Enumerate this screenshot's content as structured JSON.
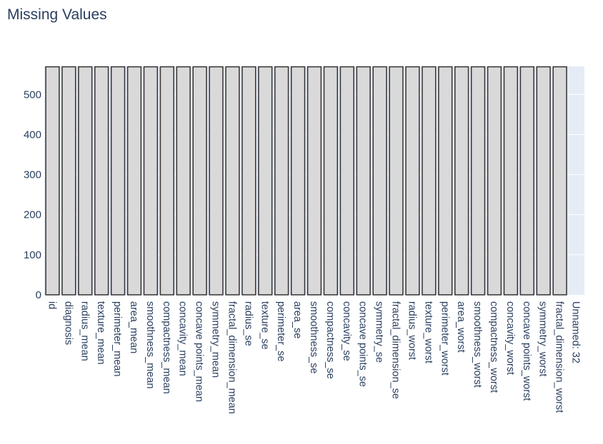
{
  "chart_data": {
    "type": "bar",
    "title": "Missing Values",
    "xlabel": "",
    "ylabel": "",
    "ylim": [
      0,
      570
    ],
    "yticks": [
      0,
      100,
      200,
      300,
      400,
      500
    ],
    "grid": true,
    "legend": "none",
    "colors": {
      "bar_fill": "#d9d9d9",
      "bar_stroke": "#333333",
      "plot_bg": "#e5ecf6",
      "grid": "#ffffff",
      "text": "#2a3f5f"
    },
    "categories": [
      "id",
      "diagnosis",
      "radius_mean",
      "texture_mean",
      "perimeter_mean",
      "area_mean",
      "smoothness_mean",
      "compactness_mean",
      "concavity_mean",
      "concave points_mean",
      "symmetry_mean",
      "fractal_dimension_mean",
      "radius_se",
      "texture_se",
      "perimeter_se",
      "area_se",
      "smoothness_se",
      "compactness_se",
      "concavity_se",
      "concave points_se",
      "symmetry_se",
      "fractal_dimension_se",
      "radius_worst",
      "texture_worst",
      "perimeter_worst",
      "area_worst",
      "smoothness_worst",
      "compactness_worst",
      "concavity_worst",
      "concave points_worst",
      "symmetry_worst",
      "fractal_dimension_worst",
      "Unnamed: 32"
    ],
    "values": [
      569,
      569,
      569,
      569,
      569,
      569,
      569,
      569,
      569,
      569,
      569,
      569,
      569,
      569,
      569,
      569,
      569,
      569,
      569,
      569,
      569,
      569,
      569,
      569,
      569,
      569,
      569,
      569,
      569,
      569,
      569,
      569,
      0
    ]
  }
}
